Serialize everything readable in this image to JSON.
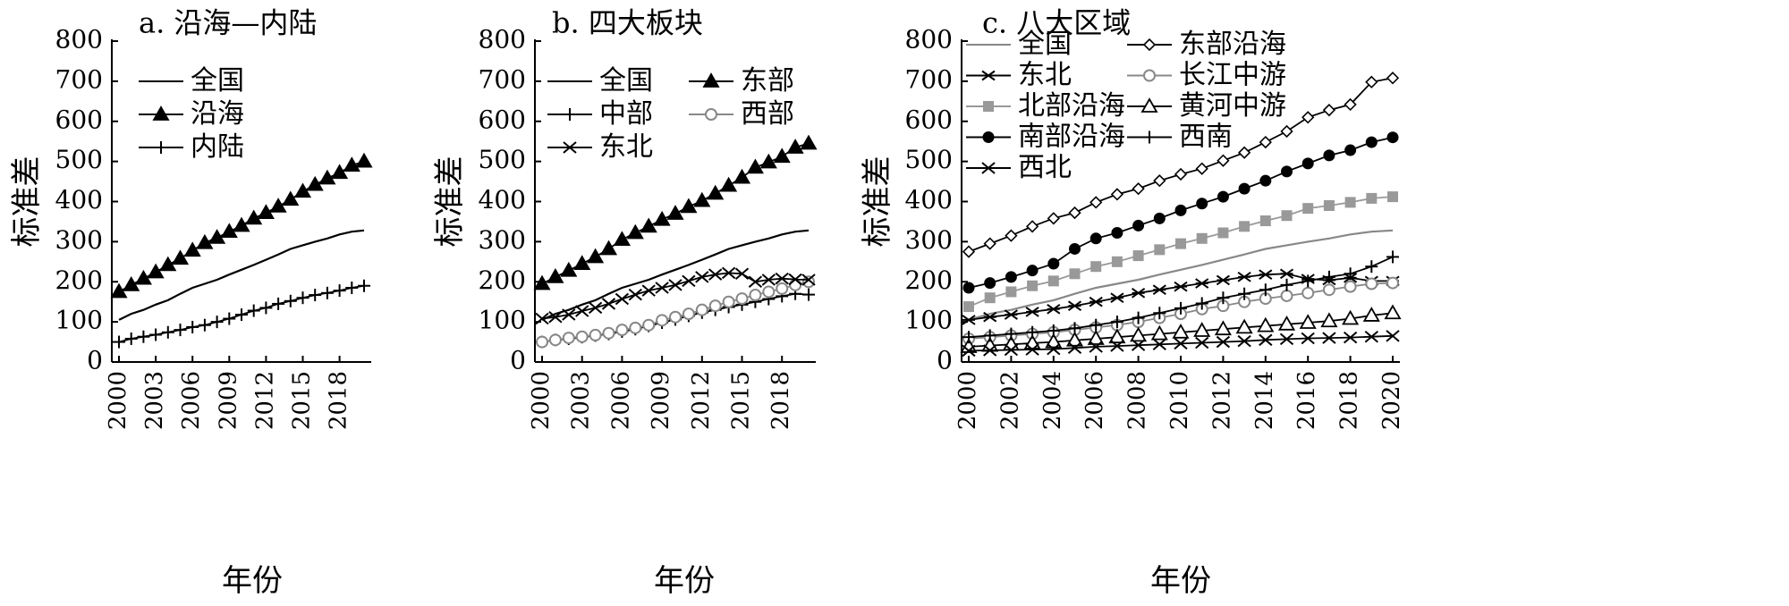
{
  "chart_data": [
    {
      "type": "line",
      "title": "a. 沿海—内陆",
      "xlabel": "年份",
      "ylabel": "标准差",
      "ylim": [
        0,
        800
      ],
      "yticks": [
        0,
        100,
        200,
        300,
        400,
        500,
        600,
        700,
        800
      ],
      "x": [
        2000,
        2001,
        2002,
        2003,
        2004,
        2005,
        2006,
        2007,
        2008,
        2009,
        2010,
        2011,
        2012,
        2013,
        2014,
        2015,
        2016,
        2017,
        2018,
        2019,
        2020
      ],
      "xticks": [
        2000,
        2003,
        2006,
        2009,
        2012,
        2015,
        2018
      ],
      "legend_position": "upper-left",
      "series": [
        {
          "name": "全国",
          "marker": "none",
          "color": "#000000",
          "values": [
            105,
            120,
            130,
            143,
            154,
            170,
            185,
            195,
            205,
            218,
            230,
            242,
            255,
            268,
            282,
            291,
            300,
            308,
            318,
            325,
            328
          ]
        },
        {
          "name": "沿海",
          "marker": "triangle",
          "color": "#000000",
          "values": [
            175,
            192,
            208,
            224,
            242,
            258,
            278,
            297,
            310,
            325,
            340,
            358,
            372,
            388,
            405,
            425,
            442,
            458,
            472,
            490,
            500
          ]
        },
        {
          "name": "内陆",
          "marker": "plus",
          "color": "#000000",
          "values": [
            50,
            58,
            63,
            68,
            74,
            80,
            87,
            92,
            100,
            108,
            118,
            128,
            135,
            145,
            152,
            160,
            167,
            172,
            178,
            185,
            190
          ]
        }
      ]
    },
    {
      "type": "line",
      "title": "b. 四大板块",
      "xlabel": "年份",
      "ylabel": "标准差",
      "ylim": [
        0,
        800
      ],
      "yticks": [
        0,
        100,
        200,
        300,
        400,
        500,
        600,
        700,
        800
      ],
      "x": [
        2000,
        2001,
        2002,
        2003,
        2004,
        2005,
        2006,
        2007,
        2008,
        2009,
        2010,
        2011,
        2012,
        2013,
        2014,
        2015,
        2016,
        2017,
        2018,
        2019,
        2020
      ],
      "xticks": [
        2000,
        2003,
        2006,
        2009,
        2012,
        2015,
        2018
      ],
      "legend_position": "upper-left",
      "series": [
        {
          "name": "全国",
          "marker": "none",
          "color": "#000000",
          "values": [
            105,
            120,
            130,
            143,
            154,
            170,
            185,
            195,
            205,
            218,
            230,
            242,
            255,
            268,
            282,
            291,
            300,
            308,
            318,
            325,
            328
          ]
        },
        {
          "name": "东部",
          "marker": "triangle",
          "color": "#000000",
          "values": [
            195,
            212,
            228,
            245,
            262,
            282,
            305,
            322,
            338,
            355,
            370,
            387,
            402,
            420,
            440,
            460,
            485,
            498,
            512,
            535,
            545
          ]
        },
        {
          "name": "中部",
          "marker": "plus",
          "color": "#000000",
          "values": [
            50,
            55,
            58,
            62,
            66,
            70,
            76,
            82,
            90,
            98,
            106,
            115,
            123,
            130,
            137,
            143,
            150,
            157,
            164,
            170,
            168
          ]
        },
        {
          "name": "西部",
          "marker": "circle-open",
          "color": "#888888",
          "values": [
            50,
            55,
            60,
            63,
            67,
            72,
            80,
            85,
            92,
            104,
            112,
            120,
            130,
            140,
            150,
            158,
            167,
            175,
            183,
            192,
            200
          ]
        },
        {
          "name": "东北",
          "marker": "x",
          "color": "#000000",
          "values": [
            108,
            112,
            118,
            127,
            135,
            145,
            157,
            168,
            178,
            185,
            192,
            202,
            212,
            218,
            222,
            220,
            200,
            205,
            208,
            206,
            205
          ]
        }
      ]
    },
    {
      "type": "line",
      "title": "c. 八大区域",
      "xlabel": "年份",
      "ylabel": "标准差",
      "ylim": [
        0,
        800
      ],
      "yticks": [
        0,
        100,
        200,
        300,
        400,
        500,
        600,
        700,
        800
      ],
      "x": [
        2000,
        2001,
        2002,
        2003,
        2004,
        2005,
        2006,
        2007,
        2008,
        2009,
        2010,
        2011,
        2012,
        2013,
        2014,
        2015,
        2016,
        2017,
        2018,
        2019,
        2020
      ],
      "xticks": [
        2000,
        2002,
        2004,
        2006,
        2008,
        2010,
        2012,
        2014,
        2016,
        2018,
        2020
      ],
      "legend_position": "upper-left",
      "series": [
        {
          "name": "全国",
          "marker": "none",
          "color": "#888888",
          "values": [
            105,
            120,
            130,
            143,
            154,
            170,
            185,
            195,
            205,
            218,
            230,
            242,
            255,
            268,
            282,
            291,
            300,
            308,
            318,
            325,
            328
          ]
        },
        {
          "name": "东部沿海",
          "marker": "diamond-open",
          "color": "#000000",
          "values": [
            275,
            295,
            315,
            338,
            358,
            372,
            398,
            418,
            432,
            452,
            468,
            482,
            502,
            522,
            548,
            575,
            610,
            628,
            642,
            698,
            708
          ]
        },
        {
          "name": "东北",
          "marker": "asterisk",
          "color": "#000000",
          "values": [
            105,
            112,
            118,
            125,
            132,
            140,
            150,
            160,
            172,
            180,
            188,
            196,
            204,
            212,
            218,
            220,
            207,
            204,
            210,
            202,
            202
          ]
        },
        {
          "name": "长江中游",
          "marker": "circle-open",
          "color": "#888888",
          "values": [
            58,
            62,
            66,
            70,
            74,
            80,
            86,
            92,
            100,
            110,
            120,
            132,
            140,
            150,
            158,
            165,
            172,
            180,
            188,
            195,
            197
          ]
        },
        {
          "name": "北部沿海",
          "marker": "square",
          "color": "#999999",
          "values": [
            138,
            160,
            175,
            190,
            202,
            220,
            238,
            250,
            265,
            280,
            295,
            308,
            322,
            338,
            352,
            365,
            383,
            390,
            398,
            408,
            412
          ]
        },
        {
          "name": "黄河中游",
          "marker": "triangle-open",
          "color": "#000000",
          "values": [
            38,
            41,
            44,
            47,
            50,
            54,
            58,
            62,
            66,
            70,
            74,
            78,
            82,
            86,
            90,
            94,
            98,
            102,
            108,
            116,
            122
          ]
        },
        {
          "name": "南部沿海",
          "marker": "circle-filled",
          "color": "#000000",
          "values": [
            185,
            197,
            212,
            228,
            245,
            282,
            308,
            322,
            340,
            358,
            378,
            395,
            412,
            432,
            452,
            475,
            495,
            515,
            528,
            548,
            560
          ]
        },
        {
          "name": "西南",
          "marker": "plus",
          "color": "#000000",
          "values": [
            62,
            66,
            70,
            74,
            78,
            84,
            92,
            100,
            110,
            122,
            134,
            146,
            160,
            170,
            180,
            192,
            202,
            212,
            220,
            238,
            262
          ]
        },
        {
          "name": "西北",
          "marker": "x",
          "color": "#000000",
          "values": [
            28,
            29,
            30,
            31,
            32,
            35,
            38,
            40,
            42,
            44,
            46,
            48,
            50,
            52,
            55,
            57,
            59,
            60,
            61,
            63,
            65
          ]
        }
      ]
    }
  ]
}
